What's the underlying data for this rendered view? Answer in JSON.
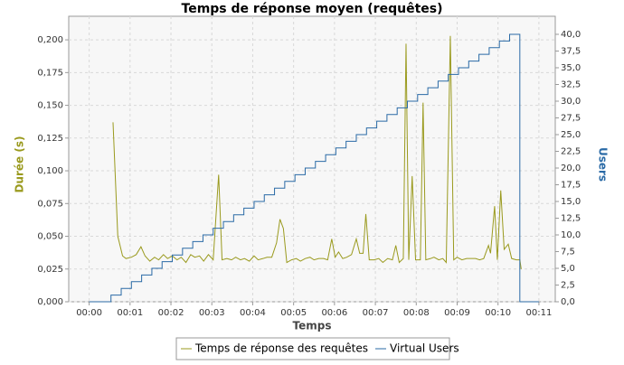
{
  "chart_data": {
    "type": "line",
    "title": "Temps de réponse moyen (requêtes)",
    "x_label": "Temps",
    "y_label": "Durée (s)",
    "y2_label": "Users",
    "xlim": [
      -30,
      684
    ],
    "ylim": [
      0,
      0.218
    ],
    "y2lim": [
      0,
      42.7
    ],
    "grid": true,
    "legend": "bottom",
    "xticks": [
      {
        "value": 0,
        "label": "00:00"
      },
      {
        "value": 60,
        "label": "00:01"
      },
      {
        "value": 120,
        "label": "00:02"
      },
      {
        "value": 180,
        "label": "00:03"
      },
      {
        "value": 240,
        "label": "00:04"
      },
      {
        "value": 300,
        "label": "00:05"
      },
      {
        "value": 360,
        "label": "00:06"
      },
      {
        "value": 420,
        "label": "00:07"
      },
      {
        "value": 480,
        "label": "00:08"
      },
      {
        "value": 540,
        "label": "00:09"
      },
      {
        "value": 600,
        "label": "00:10"
      },
      {
        "value": 660,
        "label": "00:11"
      }
    ],
    "yticks": [
      {
        "value": 0,
        "label": "0,000"
      },
      {
        "value": 0.025,
        "label": "0,025"
      },
      {
        "value": 0.05,
        "label": "0,050"
      },
      {
        "value": 0.075,
        "label": "0,075"
      },
      {
        "value": 0.1,
        "label": "0,100"
      },
      {
        "value": 0.125,
        "label": "0,125"
      },
      {
        "value": 0.15,
        "label": "0,150"
      },
      {
        "value": 0.175,
        "label": "0,175"
      },
      {
        "value": 0.2,
        "label": "0,200"
      }
    ],
    "y2ticks": [
      {
        "value": 0,
        "label": "0,0"
      },
      {
        "value": 2.5,
        "label": "2,5"
      },
      {
        "value": 5,
        "label": "5,0"
      },
      {
        "value": 7.5,
        "label": "7,5"
      },
      {
        "value": 10,
        "label": "10,0"
      },
      {
        "value": 12.5,
        "label": "12,5"
      },
      {
        "value": 15,
        "label": "15,0"
      },
      {
        "value": 17.5,
        "label": "17,5"
      },
      {
        "value": 20,
        "label": "20,0"
      },
      {
        "value": 22.5,
        "label": "22,5"
      },
      {
        "value": 25,
        "label": "25,0"
      },
      {
        "value": 27.5,
        "label": "27,5"
      },
      {
        "value": 30,
        "label": "30,0"
      },
      {
        "value": 32.5,
        "label": "32,5"
      },
      {
        "value": 35,
        "label": "35,0"
      },
      {
        "value": 37.5,
        "label": "37,5"
      },
      {
        "value": 40,
        "label": "40,0"
      }
    ],
    "series": [
      {
        "name": "Temps de réponse des requêtes",
        "color": "#9a9a1e",
        "x": [
          35,
          42,
          49,
          54,
          62,
          69,
          76,
          82,
          89,
          96,
          102,
          109,
          115,
          122,
          129,
          135,
          142,
          149,
          155,
          162,
          168,
          175,
          182,
          190,
          195,
          202,
          209,
          215,
          222,
          228,
          235,
          242,
          248,
          255,
          261,
          268,
          275,
          280,
          285,
          290,
          297,
          304,
          310,
          317,
          324,
          330,
          337,
          344,
          350,
          356,
          361,
          366,
          372,
          378,
          385,
          392,
          397,
          402,
          406,
          411,
          418,
          425,
          431,
          438,
          445,
          450,
          455,
          461,
          465,
          469,
          474,
          479,
          486,
          490,
          494,
          501,
          506,
          513,
          519,
          524,
          530,
          535,
          540,
          547,
          554,
          560,
          567,
          573,
          579,
          586,
          589,
          595,
          599,
          604,
          609,
          615,
          620,
          627,
          632,
          634
        ],
        "values": [
          0.137,
          0.05,
          0.035,
          0.033,
          0.034,
          0.036,
          0.042,
          0.035,
          0.031,
          0.034,
          0.032,
          0.036,
          0.033,
          0.035,
          0.032,
          0.034,
          0.03,
          0.036,
          0.034,
          0.035,
          0.031,
          0.036,
          0.032,
          0.097,
          0.032,
          0.033,
          0.032,
          0.034,
          0.032,
          0.033,
          0.031,
          0.035,
          0.032,
          0.033,
          0.034,
          0.034,
          0.045,
          0.063,
          0.056,
          0.03,
          0.032,
          0.033,
          0.031,
          0.033,
          0.034,
          0.032,
          0.033,
          0.033,
          0.032,
          0.048,
          0.034,
          0.038,
          0.033,
          0.034,
          0.036,
          0.048,
          0.037,
          0.037,
          0.067,
          0.032,
          0.032,
          0.033,
          0.03,
          0.033,
          0.032,
          0.043,
          0.03,
          0.033,
          0.197,
          0.032,
          0.096,
          0.032,
          0.032,
          0.152,
          0.032,
          0.033,
          0.034,
          0.032,
          0.033,
          0.03,
          0.203,
          0.032,
          0.034,
          0.032,
          0.033,
          0.033,
          0.033,
          0.032,
          0.033,
          0.043,
          0.037,
          0.073,
          0.032,
          0.085,
          0.04,
          0.044,
          0.033,
          0.032,
          0.032,
          0.025
        ]
      },
      {
        "name": "Virtual Users",
        "color": "#2a6aa6",
        "axis": "y2",
        "step": "post",
        "x": [
          0,
          32,
          47,
          62,
          77,
          92,
          107,
          122,
          137,
          152,
          167,
          182,
          197,
          212,
          227,
          242,
          257,
          272,
          287,
          302,
          317,
          332,
          347,
          362,
          377,
          392,
          407,
          422,
          437,
          452,
          467,
          482,
          497,
          512,
          527,
          542,
          557,
          572,
          587,
          602,
          617,
          632,
          660
        ],
        "values": [
          0,
          1,
          2,
          3,
          4,
          5,
          6,
          7,
          8,
          9,
          10,
          11,
          12,
          13,
          14,
          15,
          16,
          17,
          18,
          19,
          20,
          21,
          22,
          23,
          24,
          25,
          26,
          27,
          28,
          29,
          30,
          31,
          32,
          33,
          34,
          35,
          36,
          37,
          38,
          39,
          40,
          0,
          0
        ]
      }
    ]
  }
}
